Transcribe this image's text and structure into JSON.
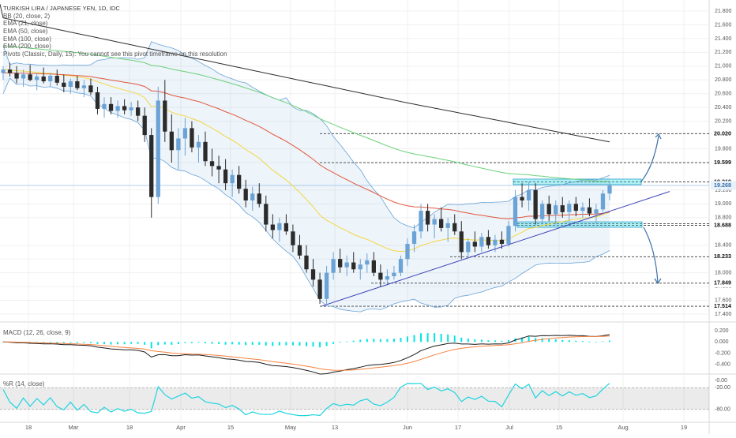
{
  "chart_data": {
    "type": "candlestick",
    "title": "TURKISH LIRA / JAPANESE YEN, 1D, IDC",
    "indicators": [
      "BB (20, close, 2)",
      "EMA (21, close)",
      "EMA (50, close)",
      "EMA (100, close)",
      "EMA (200, close)",
      "Pivots (Classic, Daily, 15): You cannot see this pivot timeframe on this resolution"
    ],
    "price_axis_ticks": [
      "21.800",
      "21.600",
      "21.400",
      "21.200",
      "21.000",
      "20.800",
      "20.600",
      "20.400",
      "20.200",
      "19.800",
      "19.600",
      "19.200",
      "19.000",
      "18.800",
      "18.400",
      "18.200",
      "18.000",
      "17.800",
      "17.600",
      "17.400"
    ],
    "highlighted_levels": [
      "20.020",
      "19.599",
      "19.319",
      "19.268",
      "18.713",
      "18.688",
      "18.233",
      "17.849",
      "17.514"
    ],
    "current_price": "19.268",
    "x_tick_labels": [
      "18",
      "Mar",
      "18",
      "Apr",
      "15",
      "May",
      "13",
      "Jun",
      "17",
      "Jul",
      "15",
      "Aug",
      "19"
    ],
    "ohlc_estimate": [
      [
        20.9,
        21.0,
        20.8,
        20.95
      ],
      [
        20.95,
        21.05,
        20.85,
        20.9
      ],
      [
        20.9,
        21.0,
        20.75,
        20.82
      ],
      [
        20.82,
        20.95,
        20.7,
        20.88
      ],
      [
        20.88,
        21.02,
        20.78,
        20.8
      ],
      [
        20.8,
        20.9,
        20.65,
        20.85
      ],
      [
        20.85,
        20.98,
        20.75,
        20.78
      ],
      [
        20.78,
        20.9,
        20.7,
        20.86
      ],
      [
        20.86,
        20.95,
        20.72,
        20.76
      ],
      [
        20.76,
        20.88,
        20.62,
        20.7
      ],
      [
        20.7,
        20.82,
        20.6,
        20.78
      ],
      [
        20.78,
        20.86,
        20.65,
        20.68
      ],
      [
        20.68,
        20.8,
        20.55,
        20.72
      ],
      [
        20.72,
        20.82,
        20.58,
        20.62
      ],
      [
        20.62,
        20.7,
        20.3,
        20.38
      ],
      [
        20.38,
        20.55,
        20.25,
        20.45
      ],
      [
        20.45,
        20.55,
        20.3,
        20.35
      ],
      [
        20.35,
        20.5,
        20.25,
        20.42
      ],
      [
        20.42,
        20.52,
        20.3,
        20.36
      ],
      [
        20.36,
        20.48,
        20.28,
        20.4
      ],
      [
        20.4,
        20.5,
        20.2,
        20.28
      ],
      [
        20.28,
        20.4,
        19.9,
        20.0
      ],
      [
        20.0,
        20.1,
        18.8,
        19.1
      ],
      [
        19.1,
        20.7,
        19.0,
        20.5
      ],
      [
        20.5,
        20.8,
        19.9,
        20.05
      ],
      [
        20.05,
        20.3,
        19.6,
        19.78
      ],
      [
        19.78,
        20.1,
        19.5,
        19.95
      ],
      [
        19.95,
        20.25,
        19.7,
        20.1
      ],
      [
        20.1,
        20.2,
        19.75,
        19.82
      ],
      [
        19.82,
        20.0,
        19.6,
        19.9
      ],
      [
        19.9,
        20.05,
        19.55,
        19.62
      ],
      [
        19.62,
        19.8,
        19.4,
        19.55
      ],
      [
        19.55,
        19.7,
        19.3,
        19.5
      ],
      [
        19.5,
        19.65,
        19.2,
        19.3
      ],
      [
        19.3,
        19.5,
        19.1,
        19.42
      ],
      [
        19.42,
        19.55,
        19.15,
        19.22
      ],
      [
        19.22,
        19.35,
        18.95,
        19.05
      ],
      [
        19.05,
        19.25,
        18.9,
        19.15
      ],
      [
        19.15,
        19.3,
        18.95,
        19.0
      ],
      [
        19.0,
        19.12,
        18.6,
        18.7
      ],
      [
        18.7,
        18.85,
        18.5,
        18.62
      ],
      [
        18.62,
        18.8,
        18.45,
        18.72
      ],
      [
        18.72,
        18.85,
        18.55,
        18.6
      ],
      [
        18.6,
        18.7,
        18.3,
        18.4
      ],
      [
        18.4,
        18.55,
        18.2,
        18.25
      ],
      [
        18.25,
        18.4,
        18.0,
        18.05
      ],
      [
        18.05,
        18.2,
        17.8,
        17.9
      ],
      [
        17.9,
        18.0,
        17.55,
        17.62
      ],
      [
        17.62,
        18.1,
        17.55,
        18.0
      ],
      [
        18.0,
        18.3,
        17.9,
        18.2
      ],
      [
        18.2,
        18.35,
        18.0,
        18.08
      ],
      [
        18.08,
        18.25,
        17.95,
        18.15
      ],
      [
        18.15,
        18.3,
        18.0,
        18.05
      ],
      [
        18.05,
        18.2,
        17.9,
        18.12
      ],
      [
        18.12,
        18.28,
        18.0,
        18.18
      ],
      [
        18.18,
        18.3,
        17.95,
        18.0
      ],
      [
        18.0,
        18.12,
        17.8,
        17.9
      ],
      [
        17.9,
        18.05,
        17.82,
        17.95
      ],
      [
        17.95,
        18.1,
        17.9,
        18.0
      ],
      [
        18.0,
        18.25,
        17.95,
        18.2
      ],
      [
        18.2,
        18.5,
        18.1,
        18.42
      ],
      [
        18.42,
        18.7,
        18.3,
        18.6
      ],
      [
        18.6,
        19.0,
        18.5,
        18.9
      ],
      [
        18.9,
        19.0,
        18.6,
        18.7
      ],
      [
        18.7,
        18.85,
        18.5,
        18.78
      ],
      [
        18.78,
        18.95,
        18.6,
        18.65
      ],
      [
        18.65,
        18.8,
        18.45,
        18.72
      ],
      [
        18.72,
        18.85,
        18.55,
        18.6
      ],
      [
        18.6,
        18.75,
        18.2,
        18.3
      ],
      [
        18.3,
        18.5,
        18.22,
        18.45
      ],
      [
        18.45,
        18.6,
        18.3,
        18.38
      ],
      [
        18.38,
        18.58,
        18.3,
        18.52
      ],
      [
        18.52,
        18.62,
        18.35,
        18.4
      ],
      [
        18.4,
        18.55,
        18.3,
        18.48
      ],
      [
        18.48,
        18.6,
        18.35,
        18.42
      ],
      [
        18.42,
        18.75,
        18.38,
        18.68
      ],
      [
        18.68,
        19.2,
        18.6,
        19.1
      ],
      [
        19.1,
        19.3,
        18.95,
        19.05
      ],
      [
        19.05,
        19.32,
        18.9,
        19.2
      ],
      [
        19.2,
        19.3,
        18.7,
        18.78
      ],
      [
        18.78,
        19.05,
        18.7,
        19.0
      ],
      [
        19.0,
        19.12,
        18.75,
        18.85
      ],
      [
        18.85,
        19.05,
        18.7,
        18.98
      ],
      [
        18.98,
        19.1,
        18.8,
        18.88
      ],
      [
        18.88,
        19.05,
        18.75,
        19.0
      ],
      [
        19.0,
        19.1,
        18.82,
        18.9
      ],
      [
        18.9,
        19.02,
        18.8,
        18.95
      ],
      [
        18.95,
        19.08,
        18.82,
        18.86
      ],
      [
        18.86,
        19.0,
        18.72,
        18.92
      ],
      [
        18.92,
        19.2,
        18.88,
        19.15
      ],
      [
        19.15,
        19.32,
        19.05,
        19.27
      ]
    ],
    "rsi_panel": {
      "label": "%R (14, close)",
      "ticks": [
        "-0.00",
        "-20.00",
        "-80.00"
      ]
    },
    "macd_panel": {
      "label": "MACD (12, 26, close, 9)",
      "ticks": [
        "0.200",
        "0.000",
        "-0.200",
        "-0.400"
      ]
    },
    "grid": true,
    "colors": {
      "up": "#6ba3d6",
      "down": "#2b2b2b",
      "ema21": "#f5d742",
      "ema50": "#e3563b",
      "ema100": "#6cd17a",
      "ema200": "#2f2f2f",
      "bb": "#6ba3d6",
      "trendline": "#3e44b8",
      "arrow": "#3a6fa8",
      "macd": "#1a1a1a",
      "signal": "#f5813e",
      "hist": "#00e5e5",
      "wpr": "#1fd4e0"
    }
  }
}
